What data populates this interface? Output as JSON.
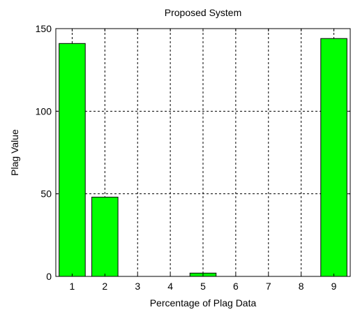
{
  "chart_data": {
    "type": "bar",
    "title": "Proposed System",
    "xlabel": "Percentage of Plag Data",
    "ylabel": "Plag Value",
    "x_ticks": [
      1,
      2,
      3,
      4,
      5,
      6,
      7,
      8,
      9
    ],
    "x_range": [
      0.5,
      9.5
    ],
    "y_ticks": [
      0,
      50,
      100,
      150
    ],
    "ylim": [
      0,
      150
    ],
    "grid": true,
    "bar_color": "#00ff00",
    "bars": [
      {
        "x": 1,
        "value": 141
      },
      {
        "x": 2,
        "value": 48
      },
      {
        "x": 5,
        "value": 2
      },
      {
        "x": 9,
        "value": 144
      }
    ]
  }
}
